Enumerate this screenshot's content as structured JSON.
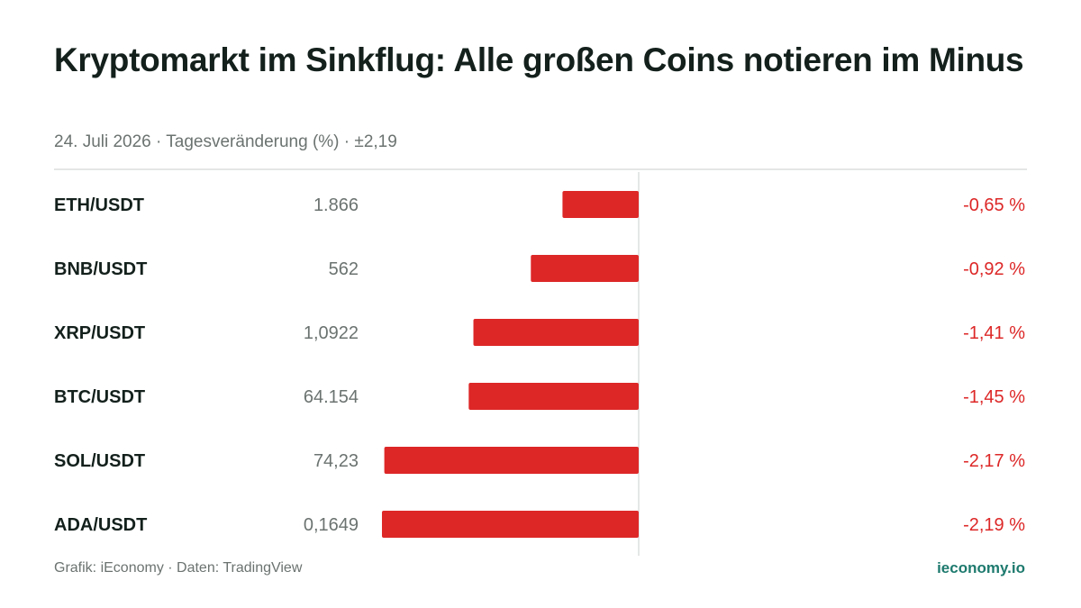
{
  "header": {
    "title": "Kryptomarkt im Sinkflug: Alle großen Coins notieren im Minus",
    "subtitle": "24. Juli 2026 · Tagesveränderung (%) · ±2,19"
  },
  "footer": {
    "source": "Grafik: iEconomy · Daten: TradingView",
    "brand": "ieconomy.io"
  },
  "colors": {
    "negative": "#dd2727",
    "label": "#13201c",
    "price": "#6b7370",
    "axis": "#dcdfde",
    "brand": "#1e7a6e"
  },
  "chart_data": {
    "type": "bar",
    "orientation": "horizontal",
    "title": "Kryptomarkt im Sinkflug: Alle großen Coins notieren im Minus",
    "subtitle": "24. Juli 2026 · Tagesveränderung (%) · ±2,19",
    "xlim": [
      -2.19,
      2.19
    ],
    "grid": false,
    "categories": [
      "ETH/USDT",
      "BNB/USDT",
      "XRP/USDT",
      "BTC/USDT",
      "SOL/USDT",
      "ADA/USDT"
    ],
    "prices": [
      "1.866",
      "562",
      "1,0922",
      "64.154",
      "74,23",
      "0,1649"
    ],
    "values": [
      -0.65,
      -0.92,
      -1.41,
      -1.45,
      -2.17,
      -2.19
    ],
    "value_labels": [
      "-0,65 %",
      "-0,92 %",
      "-1,41 %",
      "-1,45 %",
      "-2,17 %",
      "-2,19 %"
    ]
  }
}
